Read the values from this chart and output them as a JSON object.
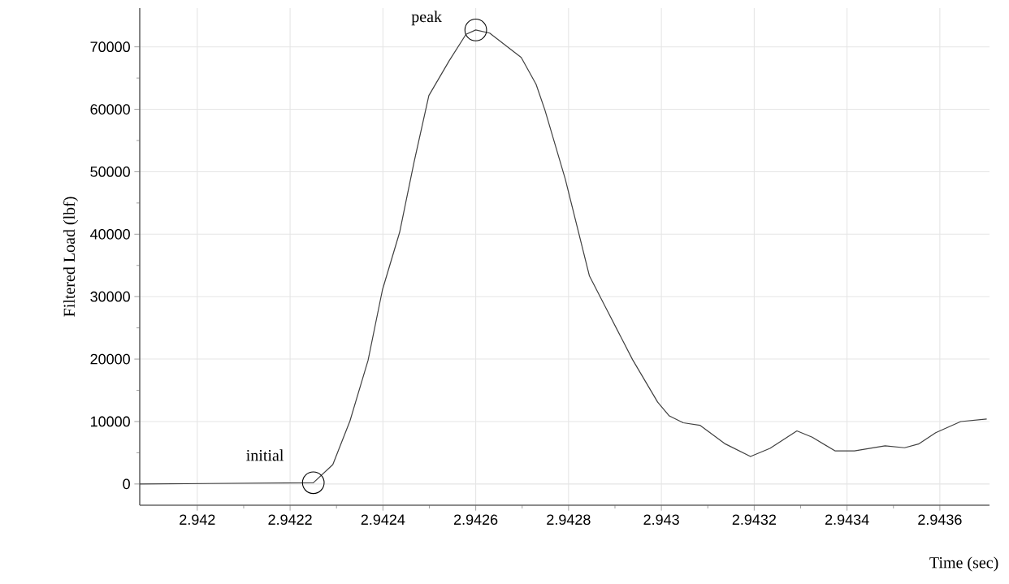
{
  "chart_data": {
    "type": "line",
    "xlabel": "Time (sec)",
    "ylabel": "Filtered Load (lbf)",
    "x": [
      2.941876,
      2.94225,
      2.942292,
      2.942329,
      2.942368,
      2.942399,
      2.942436,
      2.942467,
      2.942499,
      2.942543,
      2.942579,
      2.9426,
      2.94263,
      2.942698,
      2.94273,
      2.942749,
      2.942793,
      2.942845,
      2.942879,
      2.942938,
      2.942992,
      2.943017,
      2.943047,
      2.943083,
      2.943138,
      2.943192,
      2.943234,
      2.943292,
      2.943325,
      2.943374,
      2.943416,
      2.943482,
      2.943524,
      2.943554,
      2.943591,
      2.943645,
      2.943701
    ],
    "series": [
      {
        "color": "#404040",
        "values": [
          0,
          200,
          3100,
          10100,
          19800,
          31100,
          40300,
          51500,
          62200,
          67800,
          72000,
          72700,
          72200,
          68300,
          64000,
          59900,
          48800,
          33300,
          28400,
          19900,
          13100,
          10900,
          9800,
          9400,
          6400,
          4400,
          5700,
          8500,
          7500,
          5300,
          5300,
          6100,
          5800,
          6400,
          8200,
          10000,
          10400
        ]
      }
    ],
    "xlim": [
      2.941876,
      2.943707
    ],
    "ylim": [
      -3400,
      76200
    ],
    "xticks": [
      2.942,
      2.9422,
      2.9424,
      2.9426,
      2.9428,
      2.943,
      2.9432,
      2.9434,
      2.9436
    ],
    "yticks": [
      0,
      10000,
      20000,
      30000,
      40000,
      50000,
      60000,
      70000
    ],
    "grid": true,
    "marker": "none",
    "line_style": "solid",
    "annotations": [
      {
        "text": "initial",
        "x": 2.94225,
        "y": 200
      },
      {
        "text": "peak",
        "x": 2.9426,
        "y": 72700
      }
    ]
  }
}
